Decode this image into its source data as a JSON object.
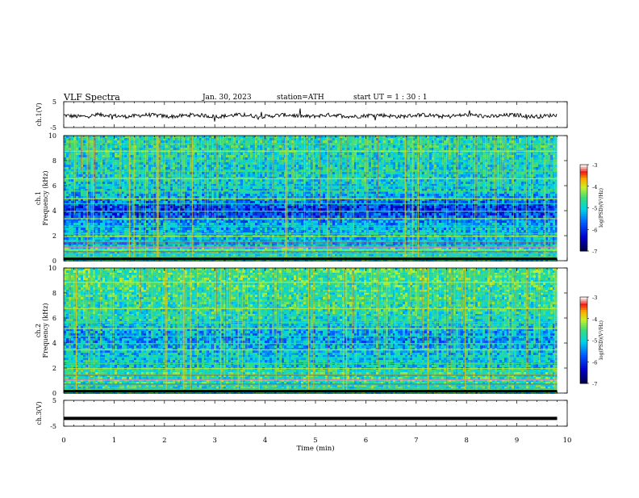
{
  "header": {
    "title": "VLF  Spectra",
    "date": "Jan. 30, 2023",
    "station": "station=ATH",
    "start": "start  UT  =   1  : 30 : 1"
  },
  "chart_data": [
    {
      "type": "line",
      "panel": "ch1-waveform",
      "ylabel": "ch.1(V)",
      "ylim": [
        -5,
        5
      ],
      "yticks": [
        "5",
        "-5"
      ],
      "xlim": [
        0,
        10
      ],
      "series": [
        {
          "name": "",
          "baseline": 0.2,
          "noise_amplitude": 1.5,
          "x_end": 9.8
        }
      ]
    },
    {
      "type": "heatmap",
      "panel": "ch1-spectrogram",
      "ylabel": "ch.1\nFrequency  (kHz)",
      "ylabel_lines": [
        "ch.1",
        "Frequency  (kHz)"
      ],
      "ylim": [
        0,
        10
      ],
      "yticks": [
        "10",
        "8",
        "6",
        "4",
        "2",
        "0"
      ],
      "xlim": [
        0,
        10
      ],
      "x_end": 9.8,
      "colorbar": {
        "label": "log(PSD)(V²/Hz)",
        "range": [
          -7,
          -3
        ],
        "ticks": [
          "-3",
          "-4",
          "-5",
          "-6",
          "-7"
        ]
      },
      "bands_kHz": [
        0.3,
        0.6,
        0.9,
        1.2,
        1.6,
        2.0,
        2.2,
        2.8,
        3.4,
        4.0,
        4.6,
        5.0,
        5.6,
        6.0,
        6.6,
        7.2,
        8.0,
        8.8,
        9.4
      ]
    },
    {
      "type": "heatmap",
      "panel": "ch2-spectrogram",
      "ylabel": "ch.2\nFrequency  (kHz)",
      "ylabel_lines": [
        "ch.2",
        "Frequency  (kHz)"
      ],
      "ylim": [
        0,
        10
      ],
      "yticks": [
        "10",
        "8",
        "6",
        "4",
        "2",
        "0"
      ],
      "xlim": [
        0,
        10
      ],
      "x_end": 9.8,
      "colorbar": {
        "label": "log(PSD)(V²/Hz)",
        "range": [
          -7,
          -3
        ],
        "ticks": [
          "-3",
          "-4",
          "-5",
          "-6",
          "-7"
        ]
      },
      "bands_kHz": [
        0.3,
        0.7,
        1.1,
        1.5,
        1.8,
        2.0,
        2.4,
        2.9,
        3.5,
        4.0,
        4.6,
        5.2,
        5.7,
        6.2,
        6.8,
        7.4,
        8.1,
        8.9,
        9.5
      ]
    },
    {
      "type": "line",
      "panel": "ch3-waveform",
      "ylabel": "ch.3(V)",
      "ylim": [
        -5,
        5
      ],
      "yticks": [
        "5",
        "-5"
      ],
      "xlim": [
        0,
        10
      ],
      "xlabel": "Time  (min)",
      "xticks": [
        "0",
        "1",
        "2",
        "3",
        "4",
        "5",
        "6",
        "7",
        "8",
        "9",
        "10"
      ],
      "series": [
        {
          "name": "",
          "baseline": -2.0,
          "noise_amplitude": 0,
          "x_end": 9.8
        }
      ]
    }
  ]
}
